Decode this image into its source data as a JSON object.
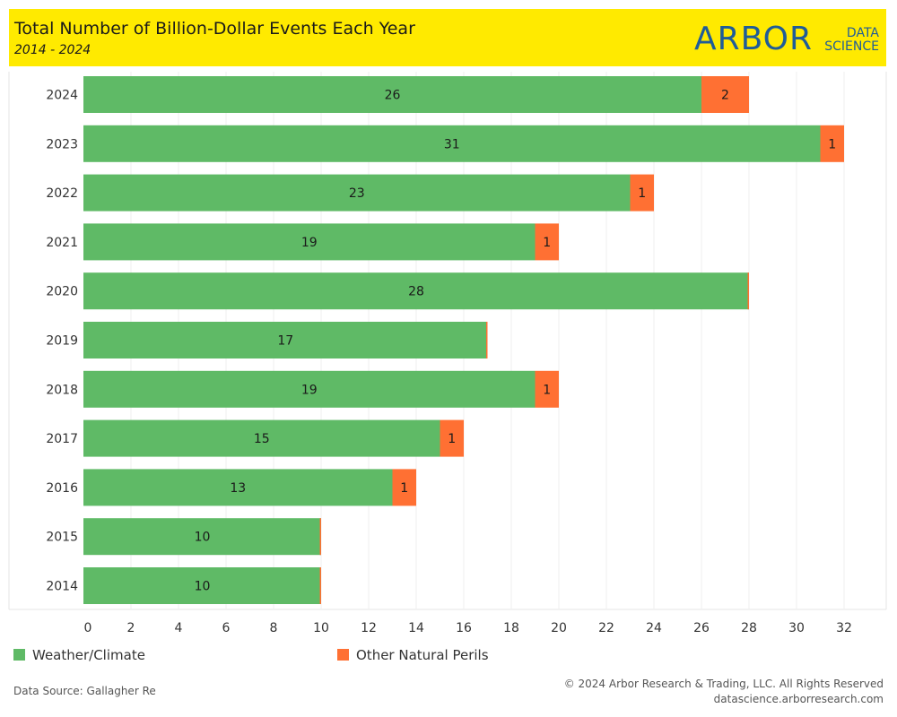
{
  "header": {
    "title": "Total Number of Billion-Dollar Events Each Year",
    "subtitle": "2014 - 2024",
    "logo_main": "ARBOR",
    "logo_line1": "DATA",
    "logo_line2": "SCIENCE"
  },
  "legend": {
    "weather_label": "Weather/Climate",
    "other_label": "Other Natural Perils"
  },
  "footer": {
    "source": "Data Source: Gallagher Re",
    "copyright": "© 2024 Arbor Research & Trading, LLC. All Rights Reserved",
    "website": "datascience.arborresearch.com"
  },
  "colors": {
    "weather": "#5fba66",
    "other": "#ff7033",
    "header_bg": "#ffea00",
    "logo": "#1f5c98"
  },
  "chart_data": {
    "type": "bar",
    "orientation": "horizontal",
    "stacked": true,
    "categories": [
      "2024",
      "2023",
      "2022",
      "2021",
      "2020",
      "2019",
      "2018",
      "2017",
      "2016",
      "2015",
      "2014"
    ],
    "series": [
      {
        "name": "Weather/Climate",
        "values": [
          26,
          31,
          23,
          19,
          28,
          17,
          19,
          15,
          13,
          10,
          10
        ],
        "color": "#5fba66"
      },
      {
        "name": "Other Natural Perils",
        "values": [
          2,
          1,
          1,
          1,
          0,
          0,
          1,
          1,
          1,
          0,
          0
        ],
        "color": "#ff7033"
      }
    ],
    "xticks": [
      0,
      2,
      4,
      6,
      8,
      10,
      12,
      14,
      16,
      18,
      20,
      22,
      24,
      26,
      28,
      30,
      32
    ],
    "xlim": [
      0,
      33
    ],
    "grid": true
  }
}
